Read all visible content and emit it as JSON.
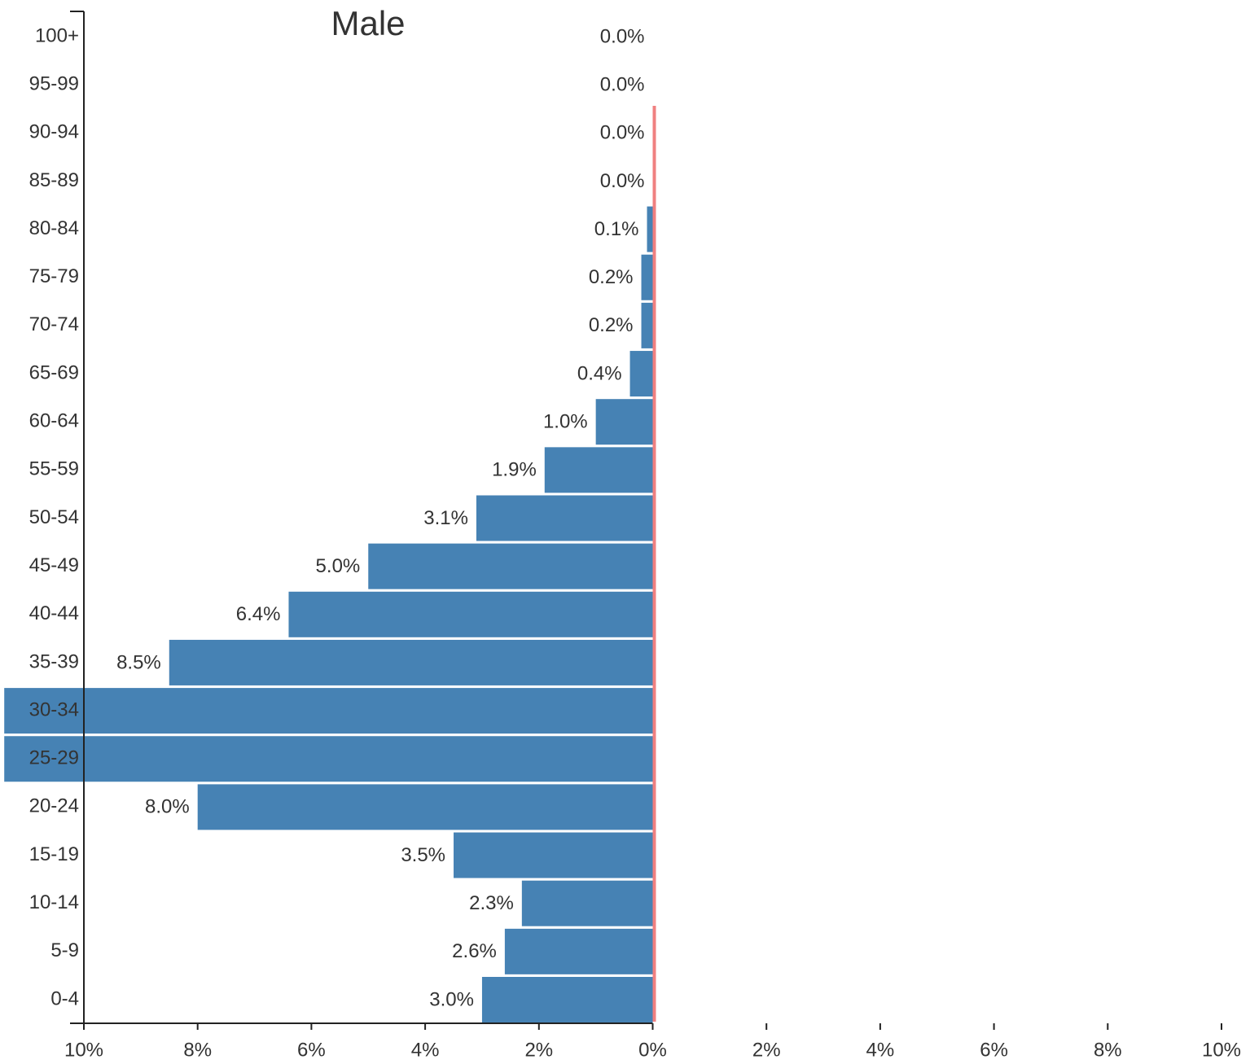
{
  "chart_data": {
    "type": "pyramid",
    "title": "Male",
    "categories": [
      "100+",
      "95-99",
      "90-94",
      "85-89",
      "80-84",
      "75-79",
      "70-74",
      "65-69",
      "60-64",
      "55-59",
      "50-54",
      "45-49",
      "40-44",
      "35-39",
      "30-34",
      "25-29",
      "20-24",
      "15-19",
      "10-14",
      "5-9",
      "0-4"
    ],
    "series": [
      {
        "name": "Male",
        "color": "#4682b4",
        "values": [
          0.0,
          0.0,
          0.0,
          0.0,
          0.1,
          0.2,
          0.2,
          0.4,
          1.0,
          1.9,
          3.1,
          5.0,
          6.4,
          8.5,
          11.4,
          11.4,
          8.0,
          3.5,
          2.3,
          2.6,
          3.0
        ],
        "value_labels": [
          "0.0%",
          "0.0%",
          "0.0%",
          "0.0%",
          "0.1%",
          "0.2%",
          "0.2%",
          "0.4%",
          "1.0%",
          "1.9%",
          "3.1%",
          "5.0%",
          "6.4%",
          "8.5%",
          null,
          null,
          "8.0%",
          "3.5%",
          "2.3%",
          "2.6%",
          "3.0%"
        ]
      }
    ],
    "xlim": [
      -10,
      10
    ],
    "xticks": [
      {
        "value": -10,
        "label": "10%"
      },
      {
        "value": -8,
        "label": "8%"
      },
      {
        "value": -6,
        "label": "6%"
      },
      {
        "value": -4,
        "label": "4%"
      },
      {
        "value": -2,
        "label": "2%"
      },
      {
        "value": 0,
        "label": "0%"
      },
      {
        "value": 2,
        "label": "2%"
      },
      {
        "value": 4,
        "label": "4%"
      },
      {
        "value": 6,
        "label": "6%"
      },
      {
        "value": 8,
        "label": "8%"
      },
      {
        "value": 10,
        "label": "10%"
      }
    ]
  }
}
